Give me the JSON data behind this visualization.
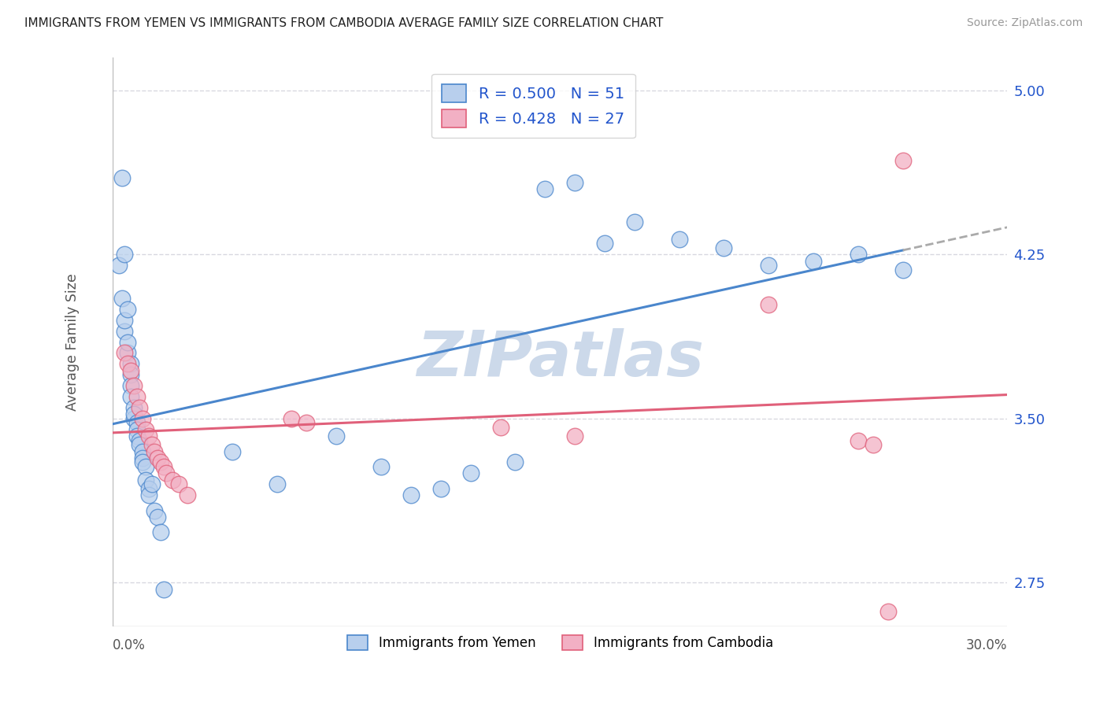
{
  "title": "IMMIGRANTS FROM YEMEN VS IMMIGRANTS FROM CAMBODIA AVERAGE FAMILY SIZE CORRELATION CHART",
  "source": "Source: ZipAtlas.com",
  "ylabel": "Average Family Size",
  "yticks_right": [
    2.75,
    3.5,
    4.25,
    5.0
  ],
  "xlim": [
    0.0,
    0.3
  ],
  "ylim": [
    2.55,
    5.15
  ],
  "background_color": "#ffffff",
  "grid_color": "#d8d8e0",
  "watermark_text": "ZIPatlas",
  "watermark_color": "#ccd9ea",
  "legend_r1": "0.500",
  "legend_n1": "51",
  "legend_r2": "0.428",
  "legend_n2": "27",
  "legend_label1": "Immigrants from Yemen",
  "legend_label2": "Immigrants from Cambodia",
  "color_yemen_fill": "#b8cfed",
  "color_cambodia_fill": "#f2b0c4",
  "color_line_yemen": "#4a86cc",
  "color_line_cambodia": "#e0607a",
  "color_r_value": "#2255cc",
  "yemen_x": [
    0.002,
    0.003,
    0.003,
    0.004,
    0.004,
    0.004,
    0.005,
    0.005,
    0.005,
    0.006,
    0.006,
    0.006,
    0.006,
    0.007,
    0.007,
    0.007,
    0.008,
    0.008,
    0.008,
    0.009,
    0.009,
    0.01,
    0.01,
    0.01,
    0.011,
    0.011,
    0.012,
    0.012,
    0.013,
    0.014,
    0.015,
    0.016,
    0.017,
    0.04,
    0.055,
    0.075,
    0.09,
    0.1,
    0.11,
    0.12,
    0.135,
    0.145,
    0.155,
    0.165,
    0.175,
    0.19,
    0.205,
    0.22,
    0.235,
    0.25,
    0.265
  ],
  "yemen_y": [
    4.2,
    4.6,
    4.05,
    4.25,
    3.9,
    3.95,
    4.0,
    3.8,
    3.85,
    3.75,
    3.7,
    3.65,
    3.6,
    3.55,
    3.5,
    3.52,
    3.48,
    3.45,
    3.42,
    3.4,
    3.38,
    3.35,
    3.32,
    3.3,
    3.28,
    3.22,
    3.18,
    3.15,
    3.2,
    3.08,
    3.05,
    2.98,
    2.72,
    3.35,
    3.2,
    3.42,
    3.28,
    3.15,
    3.18,
    3.25,
    3.3,
    4.55,
    4.58,
    4.3,
    4.4,
    4.32,
    4.28,
    4.2,
    4.22,
    4.25,
    4.18
  ],
  "cambodia_x": [
    0.004,
    0.005,
    0.006,
    0.007,
    0.008,
    0.009,
    0.01,
    0.011,
    0.012,
    0.013,
    0.014,
    0.015,
    0.016,
    0.017,
    0.018,
    0.02,
    0.022,
    0.025,
    0.06,
    0.065,
    0.13,
    0.155,
    0.22,
    0.25,
    0.255,
    0.26,
    0.265
  ],
  "cambodia_y": [
    3.8,
    3.75,
    3.72,
    3.65,
    3.6,
    3.55,
    3.5,
    3.45,
    3.42,
    3.38,
    3.35,
    3.32,
    3.3,
    3.28,
    3.25,
    3.22,
    3.2,
    3.15,
    3.5,
    3.48,
    3.46,
    3.42,
    4.02,
    3.4,
    3.38,
    2.62,
    4.68
  ]
}
